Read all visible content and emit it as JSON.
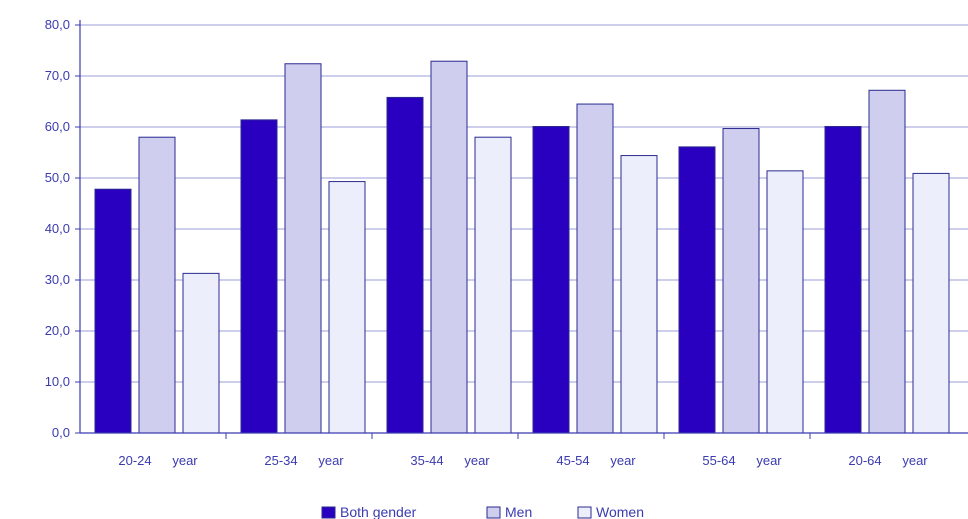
{
  "chart_data": {
    "type": "bar",
    "title": "",
    "xlabel": "",
    "ylabel": "",
    "categories": [
      "20-24 year",
      "25-34 year",
      "35-44 year",
      "45-54 year",
      "55-64 year",
      "20-64 year"
    ],
    "category_parts": [
      [
        "20-24",
        "year"
      ],
      [
        "25-34",
        "year"
      ],
      [
        "35-44",
        "year"
      ],
      [
        "45-54",
        "year"
      ],
      [
        "55-64",
        "year"
      ],
      [
        "20-64",
        "year"
      ]
    ],
    "series": [
      {
        "name": "Both gender",
        "color": "#2a00c0",
        "values": [
          47.8,
          61.4,
          65.8,
          60.1,
          56.1,
          60.1
        ]
      },
      {
        "name": "Men",
        "color": "#d0ceef",
        "values": [
          58.0,
          72.4,
          72.9,
          64.5,
          59.7,
          67.2
        ]
      },
      {
        "name": "Women",
        "color": "#eceefc",
        "values": [
          31.3,
          49.3,
          58.0,
          54.4,
          51.4,
          50.9
        ]
      }
    ],
    "y_ticks": [
      "0,0",
      "10,0",
      "20,0",
      "30,0",
      "40,0",
      "50,0",
      "60,0",
      "70,0",
      "80,0"
    ],
    "ylim": [
      0,
      80
    ],
    "grid": true,
    "legend_position": "bottom-center",
    "colors": {
      "grid": "#9b9bd8",
      "axis": "#3b3bb0",
      "bar_outline": "#2a2a90",
      "tick_text": "#3b3bb0"
    }
  }
}
